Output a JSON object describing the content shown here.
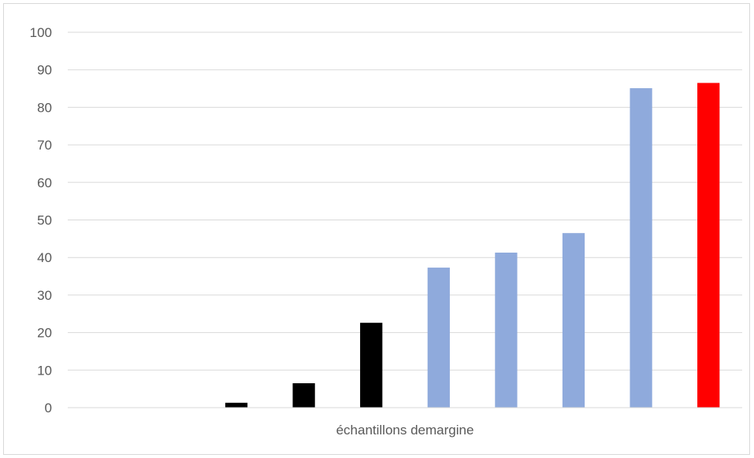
{
  "chart_data": {
    "type": "bar",
    "title": "",
    "xlabel": "échantillons demargine",
    "ylabel": "",
    "ylim": [
      0,
      100
    ],
    "yticks": [
      0,
      10,
      20,
      30,
      40,
      50,
      60,
      70,
      80,
      90,
      100
    ],
    "grid": true,
    "legend": "none",
    "categories": [
      "",
      "",
      "",
      "",
      "",
      "",
      "",
      "",
      "",
      ""
    ],
    "values": [
      0,
      0,
      1.3,
      6.5,
      22.6,
      37.3,
      41.3,
      46.5,
      85.1,
      86.5
    ],
    "colors": [
      "#000000",
      "#000000",
      "#000000",
      "#000000",
      "#000000",
      "#8faadc",
      "#8faadc",
      "#8faadc",
      "#8faadc",
      "#ff0000"
    ]
  }
}
